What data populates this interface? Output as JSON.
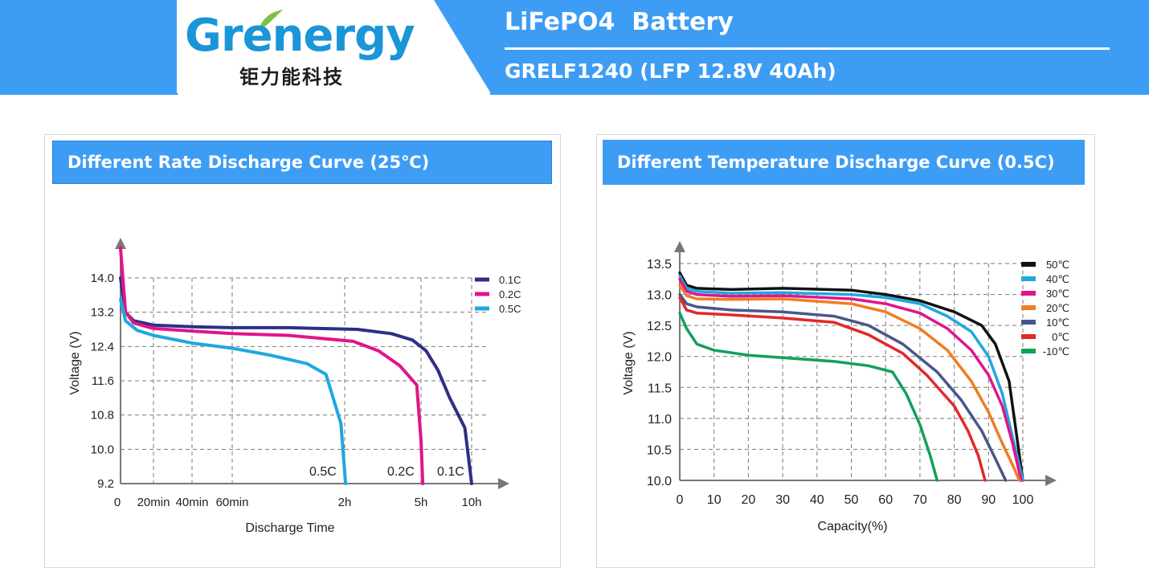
{
  "header": {
    "brand": "Grenergy",
    "brand_cn": "钜力能科技",
    "title": "LiFePO4  Battery",
    "model": "GRELF1240 (LFP 12.8V 40Ah)",
    "accent_color": "#3d9df5"
  },
  "chart_data": [
    {
      "type": "line",
      "title": "Different Rate Discharge Curve (25℃)",
      "xlabel": "Discharge Time",
      "ylabel": "Voltage (V)",
      "ylim": [
        9.2,
        14.0
      ],
      "x_ticks": [
        {
          "x": 0,
          "label": "0"
        },
        {
          "x": 20,
          "label": "20min"
        },
        {
          "x": 40,
          "label": "40min"
        },
        {
          "x": 60,
          "label": "60min"
        },
        {
          "x": 120,
          "label": "2h"
        },
        {
          "x": 300,
          "label": "5h"
        },
        {
          "x": 600,
          "label": "10h"
        }
      ],
      "y_ticks": [
        14.0,
        13.2,
        12.4,
        11.6,
        10.8,
        10.0,
        9.2
      ],
      "y_tick_labels": [
        "14.0",
        "13.2",
        "12.4",
        "11.6",
        "10.8",
        "10.0",
        "9.2"
      ],
      "legend_position": "top-right",
      "series": [
        {
          "name": "0.1C",
          "color": "#2e2f86",
          "end_label": "0.1C",
          "points": [
            [
              0,
              14.0
            ],
            [
              3,
              13.2
            ],
            [
              8,
              13.0
            ],
            [
              20,
              12.9
            ],
            [
              40,
              12.86
            ],
            [
              60,
              12.84
            ],
            [
              90,
              12.84
            ],
            [
              150,
              12.8
            ],
            [
              230,
              12.7
            ],
            [
              280,
              12.55
            ],
            [
              330,
              12.3
            ],
            [
              400,
              11.85
            ],
            [
              470,
              11.2
            ],
            [
              560,
              10.5
            ],
            [
              600,
              9.2
            ]
          ]
        },
        {
          "name": "0.2C",
          "color": "#e0158a",
          "end_label": "0.2C",
          "points": [
            [
              0,
              14.7
            ],
            [
              3,
              13.2
            ],
            [
              8,
              12.95
            ],
            [
              20,
              12.82
            ],
            [
              40,
              12.76
            ],
            [
              60,
              12.7
            ],
            [
              90,
              12.66
            ],
            [
              140,
              12.52
            ],
            [
              200,
              12.3
            ],
            [
              250,
              11.95
            ],
            [
              290,
              11.5
            ],
            [
              300,
              10.2
            ],
            [
              310,
              9.2
            ]
          ]
        },
        {
          "name": "0.5C",
          "color": "#1fa8e0",
          "end_label": "0.5C",
          "points": [
            [
              0,
              13.5
            ],
            [
              3,
              13.0
            ],
            [
              10,
              12.78
            ],
            [
              20,
              12.66
            ],
            [
              40,
              12.48
            ],
            [
              60,
              12.36
            ],
            [
              80,
              12.2
            ],
            [
              100,
              12.0
            ],
            [
              110,
              11.75
            ],
            [
              118,
              10.6
            ],
            [
              122,
              9.2
            ]
          ]
        }
      ]
    },
    {
      "type": "line",
      "title": "Different Temperature Discharge Curve (0.5C)",
      "xlabel": "Capacity(%)",
      "ylabel": "Voltage (V)",
      "xlim": [
        0,
        100
      ],
      "ylim": [
        10.0,
        13.5
      ],
      "x_ticks": [
        0,
        10,
        20,
        30,
        40,
        50,
        60,
        70,
        80,
        90,
        100
      ],
      "x_tick_labels": [
        "0",
        "10",
        "20",
        "30",
        "40",
        "50",
        "60",
        "70",
        "80",
        "90",
        "100"
      ],
      "y_ticks": [
        10.0,
        10.5,
        11.0,
        11.5,
        12.0,
        12.5,
        13.0,
        13.5
      ],
      "y_tick_labels": [
        "10.0",
        "10.5",
        "11.0",
        "11.5",
        "12.0",
        "12.5",
        "13.0",
        "13.5"
      ],
      "legend_position": "top-right",
      "series": [
        {
          "name": "50℃",
          "color": "#111111",
          "points": [
            [
              0,
              13.35
            ],
            [
              2,
              13.15
            ],
            [
              5,
              13.1
            ],
            [
              15,
              13.08
            ],
            [
              30,
              13.1
            ],
            [
              50,
              13.07
            ],
            [
              60,
              13.0
            ],
            [
              70,
              12.9
            ],
            [
              80,
              12.72
            ],
            [
              88,
              12.5
            ],
            [
              92,
              12.2
            ],
            [
              96,
              11.6
            ],
            [
              98,
              10.8
            ],
            [
              100,
              10.0
            ]
          ]
        },
        {
          "name": "40℃",
          "color": "#1fa8e0",
          "points": [
            [
              0,
              13.3
            ],
            [
              2,
              13.1
            ],
            [
              5,
              13.05
            ],
            [
              15,
              13.02
            ],
            [
              30,
              13.03
            ],
            [
              50,
              13.0
            ],
            [
              60,
              12.95
            ],
            [
              70,
              12.85
            ],
            [
              78,
              12.65
            ],
            [
              85,
              12.4
            ],
            [
              90,
              12.0
            ],
            [
              94,
              11.4
            ],
            [
              97,
              10.7
            ],
            [
              100,
              10.0
            ]
          ]
        },
        {
          "name": "30℃",
          "color": "#e0158a",
          "points": [
            [
              0,
              13.25
            ],
            [
              2,
              13.05
            ],
            [
              5,
              13.0
            ],
            [
              15,
              12.97
            ],
            [
              30,
              12.98
            ],
            [
              50,
              12.93
            ],
            [
              60,
              12.85
            ],
            [
              70,
              12.7
            ],
            [
              78,
              12.45
            ],
            [
              85,
              12.1
            ],
            [
              90,
              11.7
            ],
            [
              94,
              11.2
            ],
            [
              97,
              10.6
            ],
            [
              99.5,
              10.0
            ]
          ]
        },
        {
          "name": "20℃",
          "color": "#ef7d23",
          "points": [
            [
              0,
              13.15
            ],
            [
              2,
              12.98
            ],
            [
              5,
              12.93
            ],
            [
              15,
              12.92
            ],
            [
              30,
              12.93
            ],
            [
              50,
              12.85
            ],
            [
              60,
              12.72
            ],
            [
              70,
              12.45
            ],
            [
              78,
              12.1
            ],
            [
              85,
              11.6
            ],
            [
              90,
              11.1
            ],
            [
              94,
              10.6
            ],
            [
              97,
              10.25
            ],
            [
              99,
              10.0
            ]
          ]
        },
        {
          "name": "10℃",
          "color": "#48568c",
          "points": [
            [
              0,
              13.0
            ],
            [
              2,
              12.85
            ],
            [
              5,
              12.8
            ],
            [
              15,
              12.75
            ],
            [
              30,
              12.72
            ],
            [
              45,
              12.65
            ],
            [
              55,
              12.5
            ],
            [
              65,
              12.2
            ],
            [
              75,
              11.75
            ],
            [
              82,
              11.3
            ],
            [
              88,
              10.8
            ],
            [
              92,
              10.35
            ],
            [
              95,
              10.0
            ]
          ]
        },
        {
          "name": "0℃",
          "color": "#e32828",
          "points": [
            [
              0,
              12.95
            ],
            [
              2,
              12.75
            ],
            [
              5,
              12.7
            ],
            [
              15,
              12.67
            ],
            [
              30,
              12.62
            ],
            [
              45,
              12.55
            ],
            [
              55,
              12.35
            ],
            [
              65,
              12.05
            ],
            [
              72,
              11.7
            ],
            [
              80,
              11.2
            ],
            [
              84,
              10.8
            ],
            [
              87,
              10.4
            ],
            [
              89,
              10.0
            ]
          ]
        },
        {
          "name": "-10℃",
          "color": "#12a05c",
          "points": [
            [
              0,
              12.7
            ],
            [
              2,
              12.45
            ],
            [
              5,
              12.2
            ],
            [
              10,
              12.1
            ],
            [
              20,
              12.02
            ],
            [
              30,
              11.98
            ],
            [
              45,
              11.92
            ],
            [
              55,
              11.85
            ],
            [
              62,
              11.75
            ],
            [
              66,
              11.4
            ],
            [
              70,
              10.9
            ],
            [
              73,
              10.4
            ],
            [
              75,
              10.0
            ]
          ]
        }
      ]
    }
  ]
}
